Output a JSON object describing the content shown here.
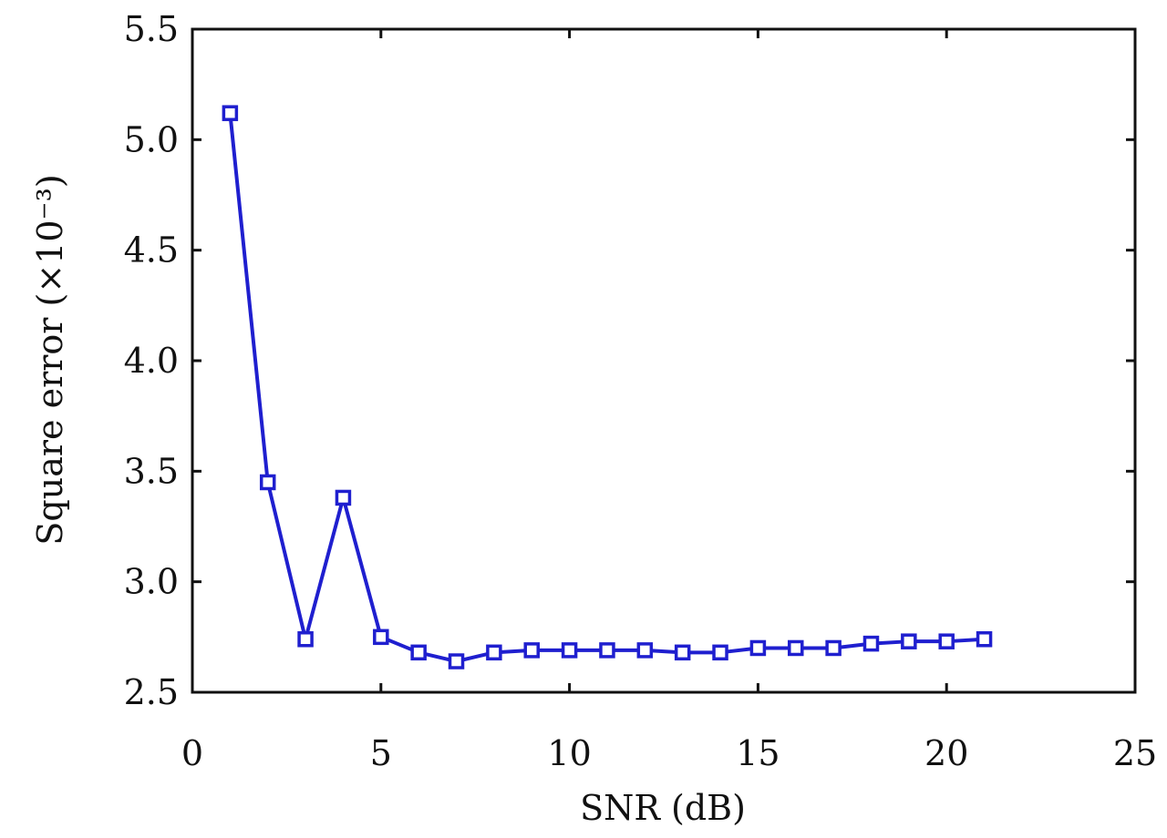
{
  "chart_data": {
    "type": "line",
    "title": "",
    "xlabel": "SNR (dB)",
    "ylabel": "Square error (×10⁻³)",
    "xlim": [
      0,
      25
    ],
    "ylim": [
      2.5,
      5.5
    ],
    "x_ticks": [
      0,
      5,
      10,
      15,
      20,
      25
    ],
    "x_tick_labels": [
      "0",
      "5",
      "10",
      "15",
      "20",
      "25"
    ],
    "y_ticks": [
      2.5,
      3.0,
      3.5,
      4.0,
      4.5,
      5.0,
      5.5
    ],
    "y_tick_labels": [
      "2.5",
      "3.0",
      "3.5",
      "4.0",
      "4.5",
      "5.0",
      "5.5"
    ],
    "grid": false,
    "series": [
      {
        "color": "#1f1fcf",
        "marker": "square",
        "x": [
          1,
          2,
          3,
          4,
          5,
          6,
          7,
          8,
          9,
          10,
          11,
          12,
          13,
          14,
          15,
          16,
          17,
          18,
          19,
          20,
          21
        ],
        "y": [
          5.12,
          3.45,
          2.74,
          3.38,
          2.75,
          2.68,
          2.64,
          2.68,
          2.69,
          2.69,
          2.69,
          2.69,
          2.68,
          2.68,
          2.7,
          2.7,
          2.7,
          2.72,
          2.73,
          2.73,
          2.74
        ]
      }
    ]
  }
}
